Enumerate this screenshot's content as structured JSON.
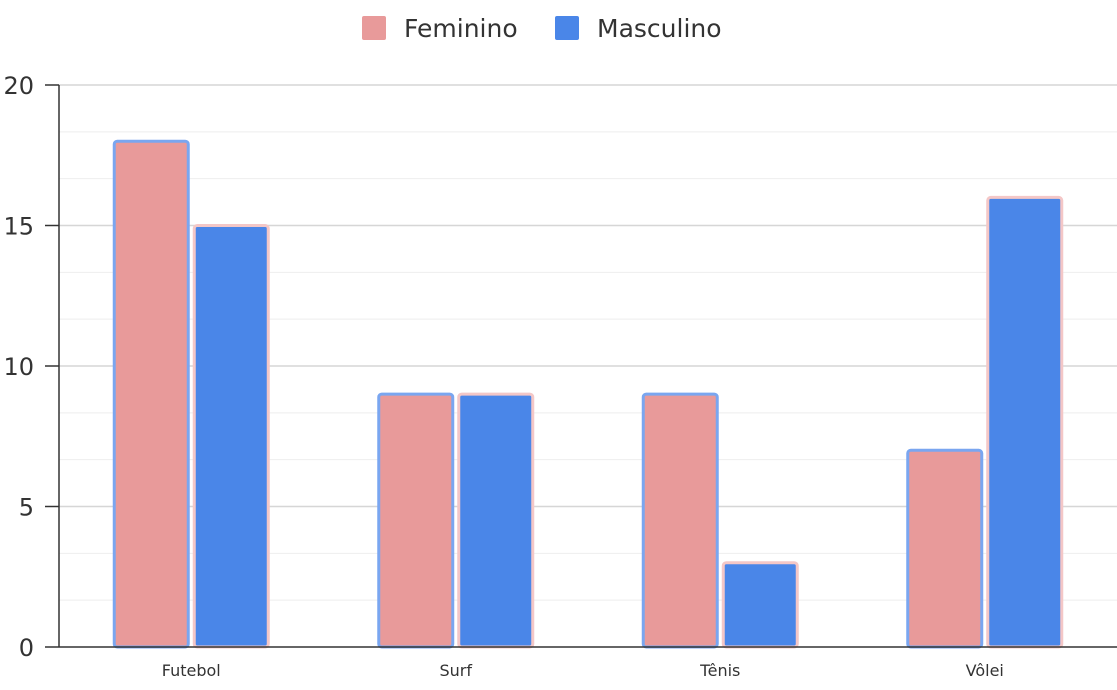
{
  "chart_data": {
    "type": "bar",
    "title": "",
    "xlabel": "",
    "ylabel": "",
    "categories": [
      "Futebol",
      "Surf",
      "Tênis",
      "Vôlei"
    ],
    "series": [
      {
        "name": "Feminino",
        "values": [
          18,
          9,
          9,
          7
        ],
        "color": "#e89a9a",
        "border_color": "#7aa6f0"
      },
      {
        "name": "Masculino",
        "values": [
          15,
          9,
          3,
          16
        ],
        "color": "#4a86e8",
        "border_color": "#f4c7c7"
      }
    ],
    "ylim": [
      0,
      20
    ],
    "yticks": [
      0,
      5,
      10,
      15,
      20
    ],
    "minor_gridlines": true,
    "grid": true,
    "legend_position": "top-center"
  }
}
